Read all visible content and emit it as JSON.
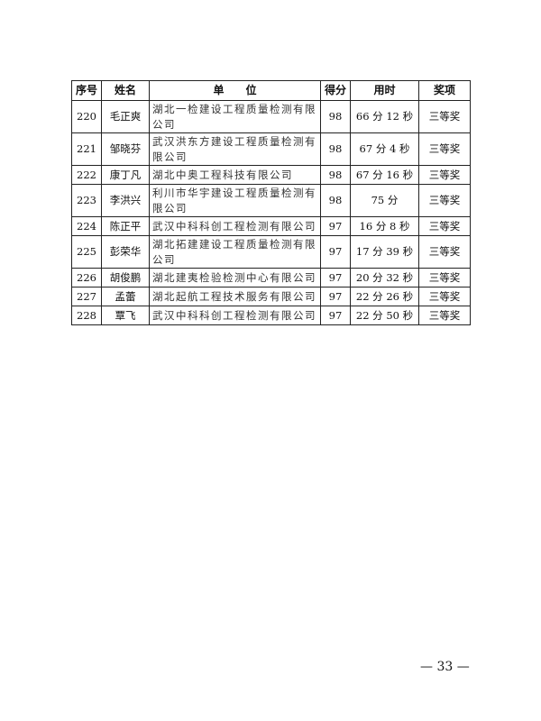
{
  "table": {
    "headers": [
      "序号",
      "姓名",
      "单　　位",
      "得分",
      "用时",
      "奖项"
    ],
    "rows": [
      {
        "no": "220",
        "name": "毛正爽",
        "unit": "湖北一检建设工程质量检测有限公司",
        "score": "98",
        "time": "66 分 12 秒",
        "award": "三等奖",
        "tall": true
      },
      {
        "no": "221",
        "name": "邹晓芬",
        "unit": "武汉洪东方建设工程质量检测有限公司",
        "score": "98",
        "time": "67 分 4 秒",
        "award": "三等奖",
        "tall": true
      },
      {
        "no": "222",
        "name": "康丁凡",
        "unit": "湖北中奥工程科技有限公司",
        "score": "98",
        "time": "67 分 16 秒",
        "award": "三等奖",
        "tall": false
      },
      {
        "no": "223",
        "name": "李洪兴",
        "unit": "利川市华宇建设工程质量检测有限公司",
        "score": "98",
        "time": "75 分",
        "award": "三等奖",
        "tall": true
      },
      {
        "no": "224",
        "name": "陈正平",
        "unit": "武汉中科科创工程检测有限公司",
        "score": "97",
        "time": "16 分 8 秒",
        "award": "三等奖",
        "tall": false
      },
      {
        "no": "225",
        "name": "彭荣华",
        "unit": "湖北拓建建设工程质量检测有限公司",
        "score": "97",
        "time": "17 分 39 秒",
        "award": "三等奖",
        "tall": true
      },
      {
        "no": "226",
        "name": "胡俊鹏",
        "unit": "湖北建夷检验检测中心有限公司",
        "score": "97",
        "time": "20 分 32 秒",
        "award": "三等奖",
        "tall": false
      },
      {
        "no": "227",
        "name": "孟蕾",
        "unit": "湖北起航工程技术服务有限公司",
        "score": "97",
        "time": "22 分 26 秒",
        "award": "三等奖",
        "tall": false
      },
      {
        "no": "228",
        "name": "覃飞",
        "unit": "武汉中科科创工程检测有限公司",
        "score": "97",
        "time": "22 分 50 秒",
        "award": "三等奖",
        "tall": false
      }
    ]
  },
  "footer": {
    "page_number": "— 33 —"
  }
}
